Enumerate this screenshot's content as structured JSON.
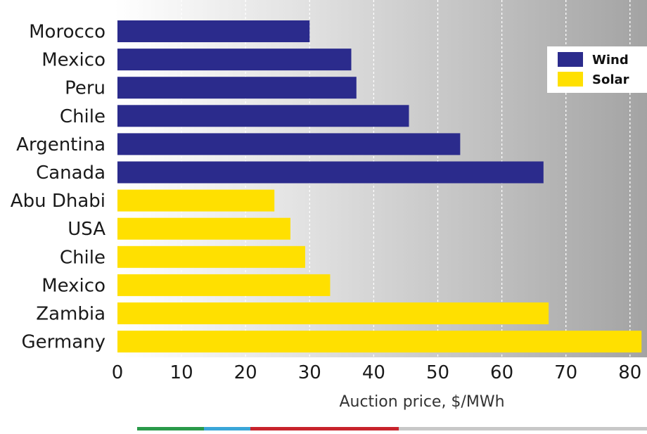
{
  "chart_data": {
    "type": "bar",
    "orientation": "horizontal",
    "title": "",
    "xlabel": "Auction price, $/MWh",
    "ylabel": "",
    "xlim": [
      0,
      82
    ],
    "xticks": [
      0,
      10,
      20,
      30,
      40,
      50,
      60,
      70,
      80
    ],
    "grid": true,
    "legend_position": "top-right",
    "colors": {
      "Wind": "#2b2b8c",
      "Solar": "#ffe000"
    },
    "legend": [
      {
        "name": "Wind",
        "color": "#2b2b8c"
      },
      {
        "name": "Solar",
        "color": "#ffe000"
      }
    ],
    "bars": [
      {
        "category": "Morocco",
        "series": "Wind",
        "value": 30
      },
      {
        "category": "Mexico",
        "series": "Wind",
        "value": 36.5
      },
      {
        "category": "Peru",
        "series": "Wind",
        "value": 37.3
      },
      {
        "category": "Chile",
        "series": "Wind",
        "value": 45.5
      },
      {
        "category": "Argentina",
        "series": "Wind",
        "value": 53.5
      },
      {
        "category": "Canada",
        "series": "Wind",
        "value": 66.5
      },
      {
        "category": "Abu Dhabi",
        "series": "Solar",
        "value": 24.5
      },
      {
        "category": "USA",
        "series": "Solar",
        "value": 27
      },
      {
        "category": "Chile",
        "series": "Solar",
        "value": 29.3
      },
      {
        "category": "Mexico",
        "series": "Solar",
        "value": 33.2
      },
      {
        "category": "Zambia",
        "series": "Solar",
        "value": 67.3
      },
      {
        "category": "Germany",
        "series": "Solar",
        "value": 81.8
      }
    ]
  }
}
